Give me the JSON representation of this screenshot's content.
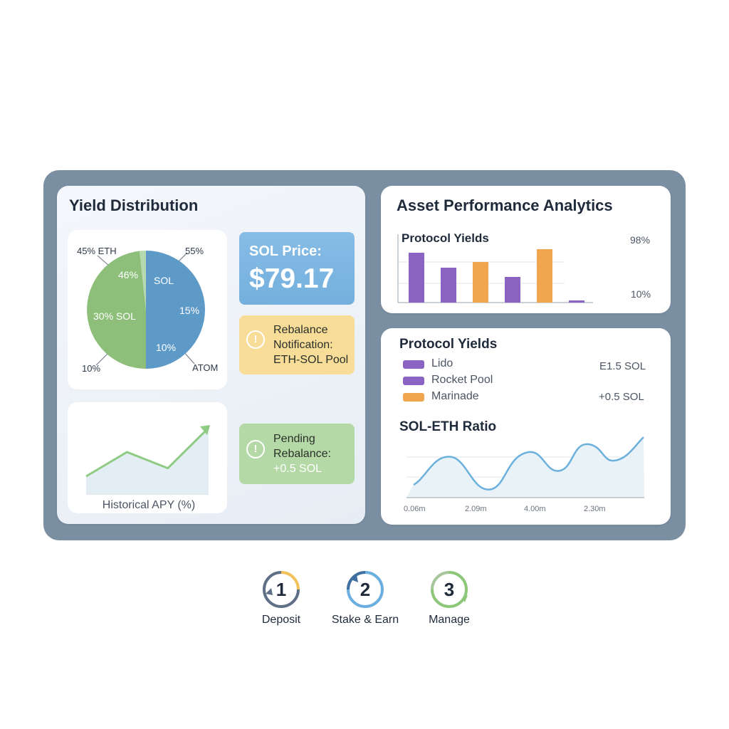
{
  "yield_distribution": {
    "title": "Yield Distribution",
    "pie_labels": {
      "eth_outer": "45% ETH",
      "outer_55": "55%",
      "inner_46": "46%",
      "sol": "SOL",
      "inner_30_sol": "30% SOL",
      "inner_15": "15%",
      "inner_10": "10%",
      "outer_10": "10%",
      "atom": "ATOM"
    },
    "pie_colors": {
      "sol": "#5e9ac7",
      "eth": "#8dbf7a",
      "sliver": "#b7d9b0"
    },
    "apy_label": "Historical APY (%)",
    "apy_series": [
      2,
      5,
      3,
      8
    ]
  },
  "sol_price": {
    "label": "SOL Price:",
    "value": "$79.17"
  },
  "rebalance_notification": {
    "lines": [
      "Rebalance",
      "Notification:",
      "ETH-SOL Pool"
    ],
    "icon": "alert-circle-icon"
  },
  "pending_rebalance": {
    "lines": [
      "Pending",
      "Rebalance:",
      "+0.5 SOL"
    ],
    "icon": "alert-circle-icon"
  },
  "asset_analytics": {
    "title": "Asset Performance Analytics",
    "subtitle": "Protocol Yields",
    "label_top": "98%",
    "label_bottom": "10%",
    "chart_data": {
      "type": "bar",
      "values": [
        70,
        49,
        57,
        36,
        75,
        3
      ],
      "colors": [
        "#8b63c2",
        "#8b63c2",
        "#f0a64f",
        "#8b63c2",
        "#f0a64f",
        "#8b63c2"
      ]
    }
  },
  "protocol_yields": {
    "title": "Protocol Yields",
    "items": [
      {
        "label": "Lido",
        "value": "E1.5 SOL",
        "color": "#8b63c2"
      },
      {
        "label": "Rocket Pool",
        "value": "",
        "color": "#8b63c2"
      },
      {
        "label": "Marinade",
        "value": "+0.5 SOL",
        "color": "#f0a64f"
      }
    ]
  },
  "sol_eth_ratio": {
    "title": "SOL-ETH Ratio",
    "ticks": [
      "0.06m",
      "2.09m",
      "4.00m",
      "2.30m"
    ]
  },
  "steps": [
    {
      "number": "1",
      "label": "Deposit",
      "colors": [
        "#f3c15a",
        "#5e6f86"
      ]
    },
    {
      "number": "2",
      "label": "Stake & Earn",
      "colors": [
        "#6baee0",
        "#3e6f9e"
      ]
    },
    {
      "number": "3",
      "label": "Manage",
      "colors": [
        "#8cc77a",
        "#a7c79a"
      ]
    }
  ]
}
